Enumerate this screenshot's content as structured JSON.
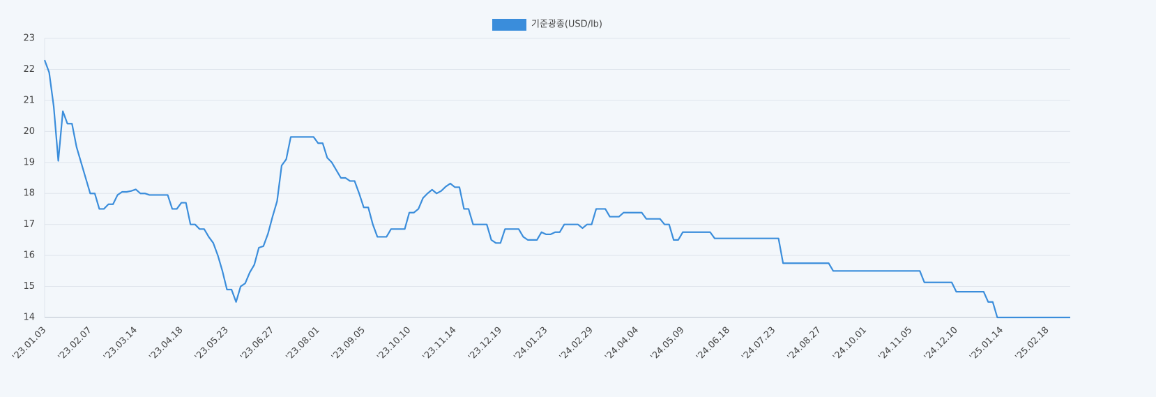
{
  "chart_data": {
    "type": "line",
    "categories": [
      "'23.01.03",
      null,
      null,
      null,
      null,
      null,
      null,
      null,
      null,
      null,
      "'23.02.07",
      null,
      null,
      null,
      null,
      null,
      null,
      null,
      null,
      null,
      "'23.03.14",
      null,
      null,
      null,
      null,
      null,
      null,
      null,
      null,
      null,
      "'23.04.18",
      null,
      null,
      null,
      null,
      null,
      null,
      null,
      null,
      null,
      "'23.05.23",
      null,
      null,
      null,
      null,
      null,
      null,
      null,
      null,
      null,
      "'23.06.27",
      null,
      null,
      null,
      null,
      null,
      null,
      null,
      null,
      null,
      "'23.08.01",
      null,
      null,
      null,
      null,
      null,
      null,
      null,
      null,
      null,
      "'23.09.05",
      null,
      null,
      null,
      null,
      null,
      null,
      null,
      null,
      null,
      "'23.10.10",
      null,
      null,
      null,
      null,
      null,
      null,
      null,
      null,
      null,
      "'23.11.14",
      null,
      null,
      null,
      null,
      null,
      null,
      null,
      null,
      null,
      "'23.12.19",
      null,
      null,
      null,
      null,
      null,
      null,
      null,
      null,
      null,
      "'24.01.23",
      null,
      null,
      null,
      null,
      null,
      null,
      null,
      null,
      null,
      "'24.02.29",
      null,
      null,
      null,
      null,
      null,
      null,
      null,
      null,
      null,
      "'24.04.04",
      null,
      null,
      null,
      null,
      null,
      null,
      null,
      null,
      null,
      "'24.05.09",
      null,
      null,
      null,
      null,
      null,
      null,
      null,
      null,
      null,
      "'24.06.18",
      null,
      null,
      null,
      null,
      null,
      null,
      null,
      null,
      null,
      "'24.07.23",
      null,
      null,
      null,
      null,
      null,
      null,
      null,
      null,
      null,
      "'24.08.27",
      null,
      null,
      null,
      null,
      null,
      null,
      null,
      null,
      null,
      "'24.10.01",
      null,
      null,
      null,
      null,
      null,
      null,
      null,
      null,
      null,
      "'24.11.05",
      null,
      null,
      null,
      null,
      null,
      null,
      null,
      null,
      null,
      "'24.12.10",
      null,
      null,
      null,
      null,
      null,
      null,
      null,
      null,
      null,
      "'25.01.14",
      null,
      null,
      null,
      null,
      null,
      null,
      null,
      null,
      null,
      "'25.02.18",
      null,
      null,
      null,
      null,
      null
    ],
    "series": [
      {
        "name": "기준광종(USD/lb)",
        "color": "#3a8ddb",
        "values": [
          22.3,
          21.9,
          20.8,
          19.05,
          20.65,
          20.25,
          20.25,
          19.5,
          19.0,
          18.5,
          18.0,
          18.0,
          17.5,
          17.5,
          17.65,
          17.65,
          17.95,
          18.05,
          18.05,
          18.08,
          18.13,
          18.0,
          18.0,
          17.95,
          17.95,
          17.95,
          17.95,
          17.95,
          17.5,
          17.5,
          17.7,
          17.7,
          17.0,
          17.0,
          16.85,
          16.85,
          16.6,
          16.4,
          16.0,
          15.5,
          14.9,
          14.9,
          14.5,
          15.0,
          15.1,
          15.45,
          15.7,
          16.25,
          16.3,
          16.7,
          17.25,
          17.75,
          18.9,
          19.1,
          19.82,
          19.82,
          19.82,
          19.82,
          19.82,
          19.82,
          19.62,
          19.62,
          19.15,
          19.0,
          18.75,
          18.5,
          18.5,
          18.4,
          18.4,
          18.0,
          17.55,
          17.55,
          17.0,
          16.6,
          16.6,
          16.6,
          16.85,
          16.85,
          16.85,
          16.85,
          17.38,
          17.38,
          17.5,
          17.85,
          18.0,
          18.12,
          18.0,
          18.08,
          18.22,
          18.32,
          18.2,
          18.2,
          17.5,
          17.5,
          17.0,
          17.0,
          17.0,
          17.0,
          16.5,
          16.4,
          16.4,
          16.85,
          16.85,
          16.85,
          16.85,
          16.6,
          16.5,
          16.5,
          16.5,
          16.75,
          16.68,
          16.68,
          16.75,
          16.75,
          17.0,
          17.0,
          17.0,
          17.0,
          16.88,
          17.0,
          17.0,
          17.5,
          17.5,
          17.5,
          17.25,
          17.25,
          17.25,
          17.38,
          17.38,
          17.38,
          17.38,
          17.38,
          17.18,
          17.18,
          17.18,
          17.18,
          17.0,
          17.0,
          16.5,
          16.5,
          16.75,
          16.75,
          16.75,
          16.75,
          16.75,
          16.75,
          16.75,
          16.55,
          16.55,
          16.55,
          16.55,
          16.55,
          16.55,
          16.55,
          16.55,
          16.55,
          16.55,
          16.55,
          16.55,
          16.55,
          16.55,
          16.55,
          15.75,
          15.75,
          15.75,
          15.75,
          15.75,
          15.75,
          15.75,
          15.75,
          15.75,
          15.75,
          15.75,
          15.5,
          15.5,
          15.5,
          15.5,
          15.5,
          15.5,
          15.5,
          15.5,
          15.5,
          15.5,
          15.5,
          15.5,
          15.5,
          15.5,
          15.5,
          15.5,
          15.5,
          15.5,
          15.5,
          15.5,
          15.13,
          15.13,
          15.13,
          15.13,
          15.13,
          15.13,
          15.13,
          14.83,
          14.83,
          14.83,
          14.83,
          14.83,
          14.83,
          14.83,
          14.5,
          14.5,
          14.0,
          14.0,
          14.0,
          14.0,
          14.0,
          14.0,
          14.0,
          14.0,
          14.0,
          14.0,
          14.0,
          14.0,
          14.0,
          14.0,
          14.0,
          14.0,
          14.0
        ]
      }
    ],
    "ylim": [
      14,
      23
    ],
    "yticks": [
      14,
      15,
      16,
      17,
      18,
      19,
      20,
      21,
      22,
      23
    ],
    "grid": true,
    "legend": "top"
  }
}
